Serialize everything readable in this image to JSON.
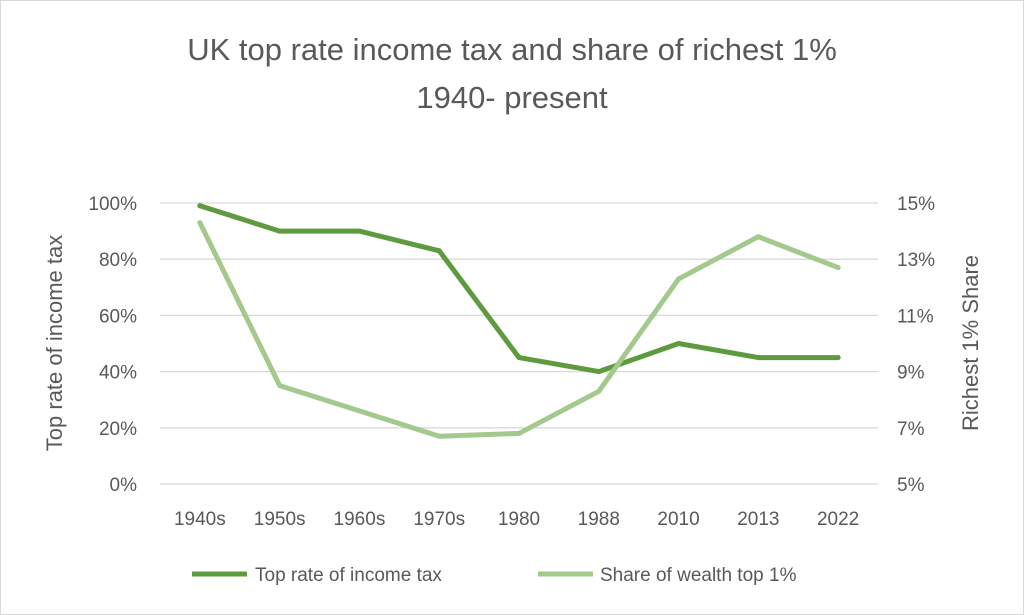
{
  "chart_data": {
    "type": "line",
    "title": "UK top rate income tax and share of richest 1%",
    "subtitle": "1940- present",
    "categories": [
      "1940s",
      "1950s",
      "1960s",
      "1970s",
      "1980",
      "1988",
      "2010",
      "2013",
      "2022"
    ],
    "ylabel": "Top rate of income tax",
    "y2label": "Richest 1% Share",
    "yticks": [
      "0%",
      "20%",
      "40%",
      "60%",
      "80%",
      "100%"
    ],
    "y2ticks": [
      "5%",
      "7%",
      "9%",
      "11%",
      "13%",
      "15%"
    ],
    "ylim": [
      0,
      100
    ],
    "y2lim": [
      5,
      15
    ],
    "grid": true,
    "legend_position": "bottom",
    "series": [
      {
        "name": "Top rate of income tax",
        "axis": "left",
        "color": "#5e9a3e",
        "values": [
          99,
          90,
          90,
          83,
          45,
          40,
          50,
          45,
          45
        ]
      },
      {
        "name": "Share of wealth top 1%",
        "axis": "right",
        "color": "#a3c98c",
        "values": [
          14.3,
          8.5,
          7.6,
          6.7,
          6.8,
          8.3,
          12.3,
          13.8,
          12.7
        ]
      }
    ]
  }
}
